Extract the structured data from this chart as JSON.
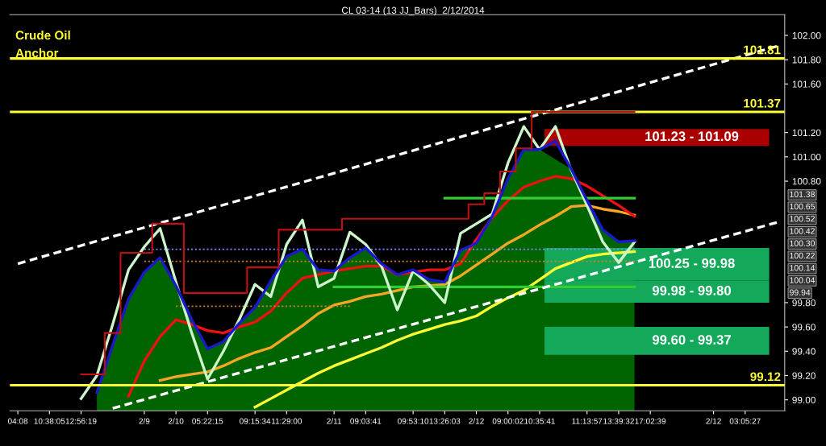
{
  "chart_data": {
    "type": "line",
    "title": "CL 03-14 (13 JJ_Bars)  2/12/2014",
    "annotations": [
      "Crude Oil",
      "Anchor",
      "101.38",
      "100.65",
      "100.52",
      "100.42",
      "100.30",
      "100.22",
      "100.14",
      "100.04",
      "99.94"
    ],
    "categories": [
      "04:08",
      null,
      "10:38:05",
      null,
      "12:56:19",
      null,
      null,
      null,
      "2/9",
      null,
      "2/10",
      null,
      "05:22:15",
      null,
      null,
      "09:15:34",
      null,
      "11:29:00",
      null,
      null,
      "2/11",
      null,
      "09:03:41",
      null,
      null,
      "09:53:10",
      null,
      "13:26:03",
      null,
      "2/12",
      null,
      "09:00:02",
      null,
      "10:35:41",
      null,
      null,
      "11:13:57",
      null,
      "13:39:32",
      null,
      "17:02:39",
      null,
      null,
      null,
      "2/12",
      null,
      "03:05:27",
      null,
      null
    ],
    "ylim": [
      98.91,
      102.17
    ],
    "yticks": [
      {
        "value": 99.0,
        "label": "99.00"
      },
      {
        "value": 99.2,
        "label": "99.20"
      },
      {
        "value": 99.4,
        "label": "99.40"
      },
      {
        "value": 99.6,
        "label": "99.60"
      },
      {
        "value": 99.8,
        "label": "99.80"
      },
      {
        "value": 100.8,
        "label": "100.80"
      },
      {
        "value": 101.0,
        "label": "101.00"
      },
      {
        "value": 101.2,
        "label": "101.20"
      },
      {
        "value": 101.6,
        "label": "101.60"
      },
      {
        "value": 101.8,
        "label": "101.80"
      },
      {
        "value": 102.0,
        "label": "102.00"
      }
    ],
    "ref_lines": [
      {
        "axis": "y",
        "value": 101.81,
        "label": "101.81",
        "color": "#ffff33"
      },
      {
        "axis": "y",
        "value": 101.37,
        "label": "101.37",
        "color": "#ffff33"
      },
      {
        "axis": "y",
        "value": 99.12,
        "label": "99.12",
        "color": "#ffff33"
      }
    ],
    "bands": [
      {
        "axis": "y",
        "from": 101.09,
        "to": 101.23,
        "label": "101.23 - 101.09",
        "color": "#aa0000"
      },
      {
        "axis": "y",
        "from": 99.98,
        "to": 100.25,
        "label": "100.25 - 99.98",
        "color": "#14a95a"
      },
      {
        "axis": "y",
        "from": 99.8,
        "to": 99.98,
        "label": "99.98 - 99.80",
        "color": "#14a95a"
      },
      {
        "axis": "y",
        "from": 99.37,
        "to": 99.6,
        "label": "99.60 - 99.37",
        "color": "#14a95a"
      }
    ],
    "grid": false,
    "legend": false,
    "series": [
      {
        "type": "area",
        "color": "#006400",
        "values": [
          null,
          null,
          null,
          null,
          null,
          99.06,
          99.45,
          99.83,
          100.05,
          100.17,
          99.94,
          99.66,
          99.42,
          99.48,
          99.63,
          99.76,
          99.98,
          100.18,
          100.24,
          100.07,
          100.06,
          100.17,
          100.25,
          100.12,
          100.03,
          100.07,
          99.99,
          99.97,
          100.23,
          100.29,
          100.51,
          100.82,
          101.06,
          101.06,
          null,
          100.9,
          100.64,
          100.4,
          100.3,
          100.31,
          null,
          null,
          null,
          null,
          null,
          null,
          null,
          null,
          null
        ]
      },
      {
        "type": "line",
        "color": "#ffff33",
        "line_style": "solid",
        "values": [
          null,
          null,
          null,
          null,
          null,
          null,
          null,
          null,
          null,
          null,
          null,
          null,
          null,
          null,
          null,
          98.94,
          99.01,
          99.08,
          99.15,
          99.22,
          99.28,
          99.33,
          99.38,
          99.43,
          99.49,
          99.54,
          99.58,
          99.62,
          99.65,
          99.69,
          99.77,
          99.84,
          99.9,
          99.99,
          100.08,
          100.13,
          100.18,
          100.2,
          100.21,
          100.22,
          null,
          null,
          null,
          null,
          null,
          null,
          null,
          null,
          null
        ]
      },
      {
        "type": "line",
        "color": "#f5a623",
        "line_style": "solid",
        "values": [
          null,
          null,
          null,
          null,
          null,
          null,
          null,
          null,
          null,
          99.16,
          99.19,
          99.21,
          99.23,
          99.28,
          99.34,
          99.39,
          99.43,
          99.52,
          99.61,
          99.71,
          99.78,
          99.81,
          99.85,
          99.87,
          99.9,
          99.93,
          99.94,
          99.95,
          100.02,
          100.11,
          100.2,
          100.29,
          100.36,
          100.44,
          100.51,
          100.59,
          100.6,
          100.57,
          100.55,
          100.52,
          null,
          null,
          null,
          null,
          null,
          null,
          null,
          null,
          null
        ]
      },
      {
        "type": "line",
        "color": "#ee1111",
        "line_style": "solid",
        "values": [
          null,
          null,
          null,
          null,
          null,
          null,
          null,
          99.03,
          99.32,
          99.52,
          99.66,
          99.62,
          99.57,
          99.55,
          99.6,
          99.64,
          99.73,
          99.88,
          100.0,
          100.03,
          100.06,
          100.08,
          100.1,
          100.1,
          100.03,
          100.05,
          100.07,
          100.07,
          100.12,
          100.32,
          100.5,
          100.64,
          100.75,
          100.8,
          100.84,
          100.82,
          100.76,
          100.68,
          100.6,
          100.51,
          null,
          null,
          null,
          null,
          null,
          null,
          null,
          null,
          null
        ]
      },
      {
        "type": "step",
        "color": "#c01010",
        "values": [
          null,
          null,
          null,
          null,
          99.21,
          99.21,
          99.55,
          100.21,
          100.21,
          100.45,
          100.45,
          99.88,
          99.88,
          99.88,
          99.88,
          100.09,
          100.09,
          100.4,
          100.4,
          100.4,
          100.4,
          100.49,
          100.49,
          100.49,
          100.49,
          100.49,
          100.49,
          100.49,
          100.49,
          100.61,
          100.7,
          100.88,
          101.07,
          101.37,
          101.37,
          101.37,
          101.37,
          101.37,
          101.37,
          101.37,
          null,
          null,
          null,
          null,
          null,
          null,
          null,
          null,
          null
        ]
      },
      {
        "type": "line",
        "color": "#8888ff",
        "line_style": "dotted",
        "values": [
          null,
          null,
          null,
          null,
          null,
          null,
          null,
          null,
          100.24,
          null,
          null,
          null,
          null,
          null,
          null,
          null,
          null,
          null,
          null,
          null,
          null,
          null,
          null,
          null,
          null,
          null,
          null,
          null,
          null,
          null,
          null,
          null,
          null,
          null,
          null,
          null,
          null,
          null,
          null,
          100.24,
          null,
          null,
          null,
          null,
          null,
          null,
          null,
          null,
          null
        ]
      },
      {
        "type": "line",
        "color": "#d08020",
        "line_style": "dotted",
        "values": [
          null,
          null,
          null,
          null,
          null,
          null,
          null,
          null,
          100.14,
          null,
          null,
          null,
          null,
          null,
          null,
          null,
          null,
          null,
          null,
          null,
          null,
          null,
          null,
          null,
          null,
          null,
          null,
          null,
          null,
          null,
          null,
          null,
          null,
          null,
          null,
          null,
          null,
          null,
          null,
          100.14,
          null,
          null,
          null,
          null,
          null,
          null,
          null,
          null,
          null
        ]
      },
      {
        "type": "line",
        "color": "#d08020",
        "line_style": "dotted",
        "values": [
          null,
          null,
          null,
          null,
          null,
          null,
          null,
          null,
          null,
          null,
          99.77,
          null,
          null,
          null,
          null,
          null,
          null,
          null,
          null,
          null,
          null,
          99.77,
          null,
          null,
          null,
          null,
          null,
          null,
          null,
          null,
          null,
          null,
          null,
          null,
          null,
          null,
          null,
          null,
          null,
          null,
          null,
          null,
          null,
          null,
          null,
          null,
          null,
          null,
          null
        ]
      },
      {
        "type": "line",
        "color": "#33cc33",
        "line_style": "solid",
        "values": [
          null,
          null,
          null,
          null,
          null,
          null,
          null,
          null,
          null,
          null,
          null,
          null,
          null,
          null,
          null,
          null,
          null,
          null,
          null,
          null,
          null,
          null,
          null,
          null,
          null,
          null,
          null,
          100.66,
          null,
          null,
          null,
          null,
          null,
          null,
          null,
          null,
          null,
          null,
          null,
          100.66,
          null,
          null,
          null,
          null,
          null,
          null,
          null,
          null,
          null
        ]
      },
      {
        "type": "line",
        "color": "#33cc33",
        "line_style": "solid",
        "values": [
          null,
          null,
          null,
          null,
          null,
          null,
          null,
          null,
          null,
          null,
          null,
          null,
          null,
          null,
          null,
          null,
          null,
          null,
          null,
          null,
          99.93,
          null,
          null,
          null,
          null,
          null,
          null,
          null,
          null,
          null,
          null,
          null,
          null,
          null,
          null,
          null,
          null,
          null,
          null,
          99.93,
          null,
          null,
          null,
          null,
          null,
          null,
          null,
          null,
          null
        ]
      },
      {
        "type": "line",
        "color": "#ccf5cc",
        "line_style": "solid",
        "values": [
          null,
          null,
          null,
          null,
          99.01,
          99.2,
          99.62,
          100.07,
          100.26,
          100.41,
          99.97,
          99.55,
          99.17,
          99.4,
          99.66,
          99.95,
          99.85,
          100.28,
          100.48,
          99.93,
          100.0,
          100.38,
          100.28,
          100.1,
          99.74,
          100.06,
          99.95,
          99.8,
          100.37,
          100.45,
          100.53,
          100.95,
          101.25,
          101.06,
          101.25,
          100.89,
          100.6,
          100.3,
          100.13,
          100.3,
          null,
          null,
          null,
          null,
          null,
          null,
          null,
          null,
          null
        ]
      },
      {
        "type": "line",
        "color": "#1a1acc",
        "line_style": "solid",
        "values": [
          null,
          null,
          null,
          null,
          null,
          99.06,
          99.45,
          99.83,
          100.05,
          100.17,
          99.94,
          99.66,
          99.42,
          99.48,
          99.63,
          99.76,
          99.98,
          100.18,
          100.24,
          100.07,
          100.06,
          100.17,
          100.25,
          100.12,
          100.03,
          100.07,
          99.99,
          99.97,
          100.23,
          100.29,
          100.51,
          100.82,
          101.06,
          101.06,
          101.13,
          100.9,
          100.64,
          100.4,
          100.3,
          100.31,
          null,
          null,
          null,
          null,
          null,
          null,
          null,
          null,
          null
        ]
      },
      {
        "type": "line",
        "color": "#ffffff",
        "line_style": "dashed",
        "values": [
          100.12,
          null,
          null,
          null,
          null,
          null,
          null,
          null,
          null,
          null,
          null,
          null,
          null,
          null,
          null,
          null,
          null,
          null,
          null,
          null,
          null,
          null,
          null,
          null,
          null,
          null,
          null,
          null,
          null,
          null,
          null,
          null,
          null,
          null,
          null,
          null,
          null,
          null,
          null,
          null,
          null,
          null,
          null,
          null,
          null,
          null,
          null,
          null,
          101.91
        ]
      },
      {
        "type": "line",
        "color": "#ffffff",
        "line_style": "dashed",
        "values": [
          null,
          null,
          null,
          null,
          null,
          null,
          98.93,
          null,
          null,
          null,
          null,
          null,
          null,
          null,
          null,
          null,
          null,
          null,
          null,
          null,
          null,
          null,
          null,
          null,
          null,
          null,
          null,
          null,
          null,
          null,
          null,
          null,
          null,
          null,
          null,
          null,
          null,
          null,
          null,
          null,
          null,
          null,
          null,
          null,
          null,
          null,
          null,
          null,
          100.46
        ]
      }
    ]
  }
}
